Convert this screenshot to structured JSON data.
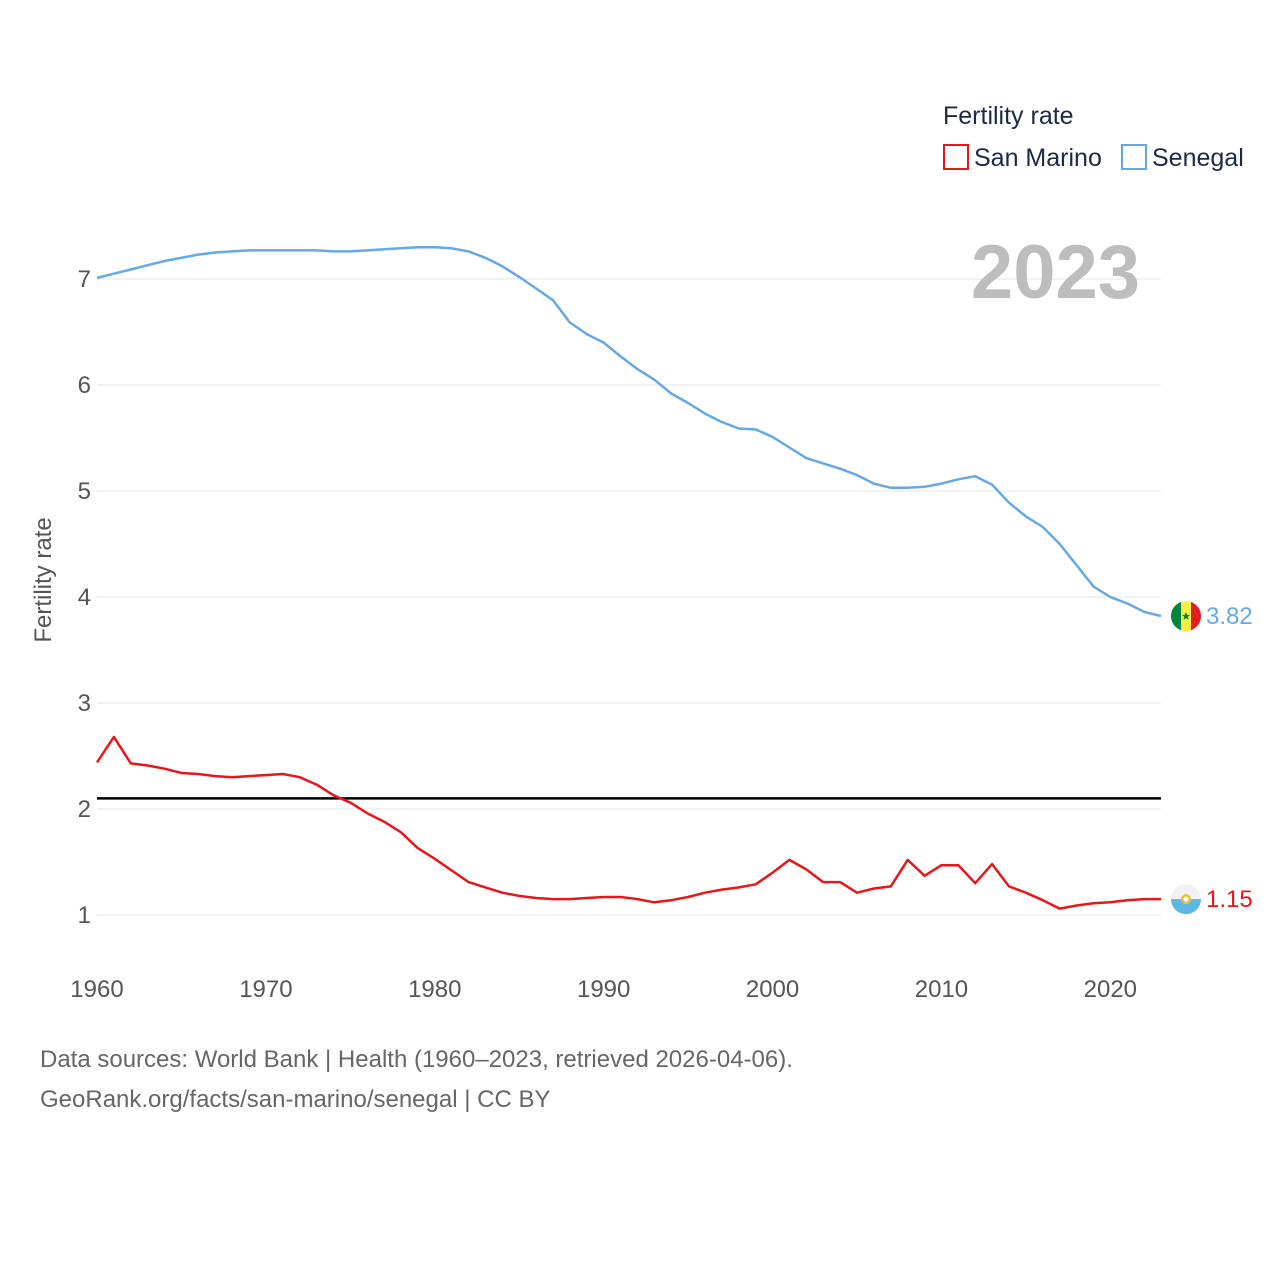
{
  "chart_data": {
    "type": "line",
    "title": "Fertility rate",
    "ylabel": "Fertility rate",
    "xlabel": "",
    "year_label": "2023",
    "xlim": [
      1960,
      2023
    ],
    "ylim": [
      0.7,
      7.4
    ],
    "x_ticks": [
      "1960",
      "1970",
      "1980",
      "1990",
      "2000",
      "2010",
      "2020"
    ],
    "y_ticks": [
      "1",
      "2",
      "3",
      "4",
      "5",
      "6",
      "7"
    ],
    "grid": true,
    "legend": {
      "title": "Fertility rate",
      "position": "top-right"
    },
    "reference_line": {
      "value": 2.1,
      "color": "#000000"
    },
    "x": [
      1960,
      1961,
      1962,
      1963,
      1964,
      1965,
      1966,
      1967,
      1968,
      1969,
      1970,
      1971,
      1972,
      1973,
      1974,
      1975,
      1976,
      1977,
      1978,
      1979,
      1980,
      1981,
      1982,
      1983,
      1984,
      1985,
      1986,
      1987,
      1988,
      1989,
      1990,
      1991,
      1992,
      1993,
      1994,
      1995,
      1996,
      1997,
      1998,
      1999,
      2000,
      2001,
      2002,
      2003,
      2004,
      2005,
      2006,
      2007,
      2008,
      2009,
      2010,
      2011,
      2012,
      2013,
      2014,
      2015,
      2016,
      2017,
      2018,
      2019,
      2020,
      2021,
      2022,
      2023
    ],
    "series": [
      {
        "name": "San Marino",
        "color": "#e8161b",
        "end_label": "1.15",
        "flag": "san-marino-flag-icon",
        "values": [
          2.44,
          2.68,
          2.43,
          2.41,
          2.38,
          2.34,
          2.33,
          2.31,
          2.3,
          2.31,
          2.32,
          2.33,
          2.3,
          2.23,
          2.13,
          2.06,
          1.96,
          1.88,
          1.78,
          1.63,
          1.53,
          1.42,
          1.31,
          1.26,
          1.21,
          1.18,
          1.16,
          1.15,
          1.15,
          1.16,
          1.17,
          1.17,
          1.15,
          1.12,
          1.14,
          1.17,
          1.21,
          1.24,
          1.26,
          1.29,
          1.4,
          1.52,
          1.43,
          1.31,
          1.31,
          1.21,
          1.25,
          1.27,
          1.52,
          1.37,
          1.47,
          1.47,
          1.3,
          1.48,
          1.27,
          1.21,
          1.14,
          1.06,
          1.09,
          1.11,
          1.12,
          1.14,
          1.15,
          1.15
        ]
      },
      {
        "name": "Senegal",
        "color": "#64a9e6",
        "end_label": "3.82",
        "flag": "senegal-flag-icon",
        "values": [
          7.01,
          7.05,
          7.09,
          7.13,
          7.17,
          7.2,
          7.23,
          7.25,
          7.26,
          7.27,
          7.27,
          7.27,
          7.27,
          7.27,
          7.26,
          7.26,
          7.27,
          7.28,
          7.29,
          7.3,
          7.3,
          7.29,
          7.26,
          7.2,
          7.12,
          7.02,
          6.91,
          6.8,
          6.59,
          6.48,
          6.4,
          6.27,
          6.15,
          6.05,
          5.92,
          5.83,
          5.73,
          5.65,
          5.59,
          5.58,
          5.51,
          5.41,
          5.31,
          5.26,
          5.21,
          5.15,
          5.07,
          5.03,
          5.03,
          5.04,
          5.07,
          5.11,
          5.14,
          5.06,
          4.89,
          4.76,
          4.66,
          4.5,
          4.3,
          4.1,
          4.0,
          3.94,
          3.86,
          3.82
        ]
      }
    ]
  },
  "footer": {
    "source_line": "Data sources: World Bank | Health (1960–2023, retrieved 2026-04-06).",
    "attribution_line": "GeoRank.org/facts/san-marino/senegal | CC BY"
  }
}
